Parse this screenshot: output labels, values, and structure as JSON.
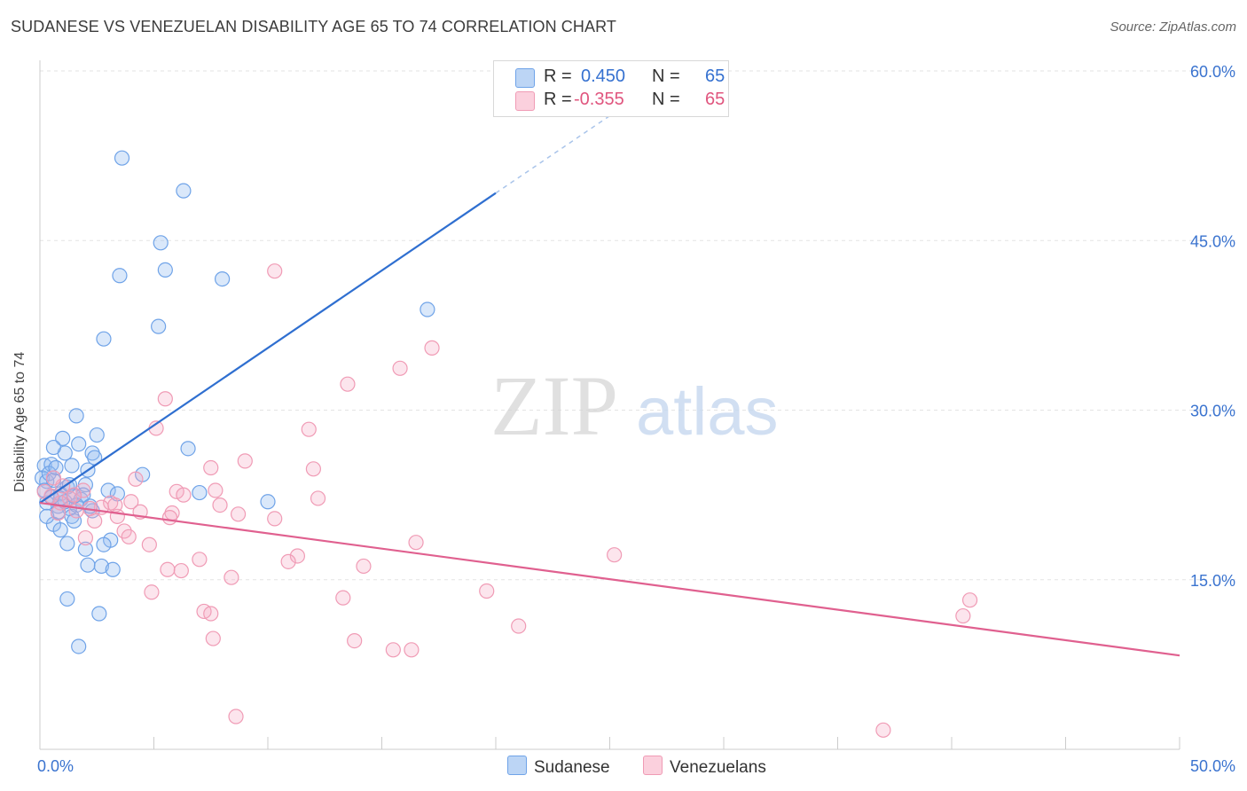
{
  "title": "SUDANESE VS VENEZUELAN DISABILITY AGE 65 TO 74 CORRELATION CHART",
  "source": "Source: ZipAtlas.com",
  "watermark": {
    "zip": "ZIP",
    "atlas": "atlas"
  },
  "legend": {
    "r_label": "R =",
    "n_label": "N =",
    "sudanese": {
      "r": "0.450",
      "n": "65"
    },
    "venezuelans": {
      "r": "-0.355",
      "n": "65"
    }
  },
  "chart_data": {
    "type": "scatter",
    "title": "SUDANESE VS VENEZUELAN DISABILITY AGE 65 TO 74 CORRELATION CHART",
    "xlabel": "",
    "ylabel": "Disability Age 65 to 74",
    "xlim": [
      0,
      50
    ],
    "ylim": [
      0,
      60
    ],
    "x_tick_labels": [
      "0.0%",
      "50.0%"
    ],
    "y_ticks": [
      15,
      30,
      45,
      60
    ],
    "y_tick_labels": [
      "15.0%",
      "30.0%",
      "45.0%",
      "60.0%"
    ],
    "colors": {
      "sudanese": "#6fa3e8",
      "venezuelans": "#f09bb5",
      "sudanese_line": "#2f6fd0",
      "venezuelans_line": "#e0608f"
    },
    "series": [
      {
        "name": "Sudanese",
        "trendline": {
          "x0": 0,
          "y0": 21.8,
          "x1": 20.0,
          "y1": 49.2,
          "dashed_to_x": 26.0,
          "dashed_to_y": 57.4
        },
        "points": [
          [
            3.6,
            52.3
          ],
          [
            6.3,
            49.4
          ],
          [
            5.3,
            44.8
          ],
          [
            5.5,
            42.4
          ],
          [
            3.5,
            41.9
          ],
          [
            8.0,
            41.6
          ],
          [
            5.2,
            37.4
          ],
          [
            2.8,
            36.3
          ],
          [
            17.0,
            38.9
          ],
          [
            1.6,
            29.5
          ],
          [
            2.5,
            27.8
          ],
          [
            1.0,
            27.5
          ],
          [
            1.7,
            27.0
          ],
          [
            1.1,
            26.2
          ],
          [
            0.6,
            26.7
          ],
          [
            2.3,
            26.2
          ],
          [
            6.5,
            26.6
          ],
          [
            1.4,
            25.1
          ],
          [
            0.2,
            25.1
          ],
          [
            0.5,
            25.2
          ],
          [
            2.1,
            24.7
          ],
          [
            4.5,
            24.3
          ],
          [
            0.1,
            24.0
          ],
          [
            0.3,
            23.7
          ],
          [
            1.2,
            23.2
          ],
          [
            3.0,
            22.9
          ],
          [
            2.0,
            23.4
          ],
          [
            0.9,
            22.6
          ],
          [
            7.0,
            22.7
          ],
          [
            3.4,
            22.6
          ],
          [
            1.8,
            22.1
          ],
          [
            10.0,
            21.9
          ],
          [
            0.8,
            21.5
          ],
          [
            0.3,
            21.8
          ],
          [
            1.3,
            21.3
          ],
          [
            2.3,
            21.1
          ],
          [
            1.4,
            20.6
          ],
          [
            1.5,
            20.2
          ],
          [
            0.6,
            19.9
          ],
          [
            0.9,
            19.4
          ],
          [
            3.1,
            18.5
          ],
          [
            2.8,
            18.1
          ],
          [
            1.2,
            18.2
          ],
          [
            2.0,
            17.7
          ],
          [
            2.1,
            16.3
          ],
          [
            2.7,
            16.2
          ],
          [
            3.2,
            15.9
          ],
          [
            1.2,
            13.3
          ],
          [
            2.6,
            12.0
          ],
          [
            1.7,
            9.1
          ],
          [
            0.4,
            24.4
          ],
          [
            0.8,
            21.0
          ],
          [
            1.9,
            22.5
          ],
          [
            0.2,
            22.9
          ],
          [
            1.1,
            21.9
          ],
          [
            2.4,
            25.8
          ],
          [
            0.6,
            23.8
          ],
          [
            1.6,
            21.6
          ],
          [
            0.3,
            20.6
          ],
          [
            0.9,
            22.2
          ],
          [
            1.5,
            22.4
          ],
          [
            2.2,
            21.5
          ],
          [
            0.7,
            24.9
          ],
          [
            1.3,
            23.4
          ],
          [
            0.5,
            22.3
          ]
        ]
      },
      {
        "name": "Venezuelans",
        "trendline": {
          "x0": 0,
          "y0": 21.8,
          "x1": 50,
          "y1": 8.3
        },
        "points": [
          [
            10.3,
            42.3
          ],
          [
            17.2,
            35.5
          ],
          [
            15.8,
            33.7
          ],
          [
            13.5,
            32.3
          ],
          [
            5.5,
            31.0
          ],
          [
            5.1,
            28.4
          ],
          [
            11.8,
            28.3
          ],
          [
            9.0,
            25.5
          ],
          [
            7.5,
            24.9
          ],
          [
            12.0,
            24.8
          ],
          [
            4.2,
            23.9
          ],
          [
            7.7,
            22.9
          ],
          [
            6.0,
            22.8
          ],
          [
            6.3,
            22.5
          ],
          [
            12.2,
            22.2
          ],
          [
            1.9,
            22.9
          ],
          [
            1.3,
            22.2
          ],
          [
            4.0,
            21.9
          ],
          [
            3.1,
            21.8
          ],
          [
            7.9,
            21.6
          ],
          [
            2.7,
            21.4
          ],
          [
            0.5,
            22.4
          ],
          [
            0.9,
            21.8
          ],
          [
            4.4,
            21.0
          ],
          [
            5.8,
            20.9
          ],
          [
            8.7,
            20.8
          ],
          [
            10.3,
            20.4
          ],
          [
            5.7,
            20.5
          ],
          [
            3.4,
            20.6
          ],
          [
            2.4,
            20.2
          ],
          [
            3.7,
            19.3
          ],
          [
            4.8,
            18.1
          ],
          [
            3.9,
            18.8
          ],
          [
            2.0,
            18.7
          ],
          [
            16.5,
            18.3
          ],
          [
            11.3,
            17.1
          ],
          [
            10.9,
            16.6
          ],
          [
            14.2,
            16.2
          ],
          [
            7.0,
            16.8
          ],
          [
            6.2,
            15.8
          ],
          [
            5.6,
            15.9
          ],
          [
            8.4,
            15.2
          ],
          [
            25.2,
            17.2
          ],
          [
            19.6,
            14.0
          ],
          [
            4.9,
            13.9
          ],
          [
            13.3,
            13.4
          ],
          [
            40.8,
            13.2
          ],
          [
            7.2,
            12.2
          ],
          [
            7.5,
            12.0
          ],
          [
            40.5,
            11.8
          ],
          [
            21.0,
            10.9
          ],
          [
            7.6,
            9.8
          ],
          [
            13.8,
            9.6
          ],
          [
            15.5,
            8.8
          ],
          [
            16.3,
            8.8
          ],
          [
            8.6,
            2.9
          ],
          [
            37.0,
            1.7
          ],
          [
            1.0,
            23.3
          ],
          [
            0.2,
            22.8
          ],
          [
            0.6,
            24.0
          ],
          [
            1.5,
            22.5
          ],
          [
            2.2,
            21.3
          ],
          [
            3.3,
            21.6
          ],
          [
            0.8,
            20.9
          ],
          [
            1.6,
            21.1
          ]
        ]
      }
    ]
  }
}
